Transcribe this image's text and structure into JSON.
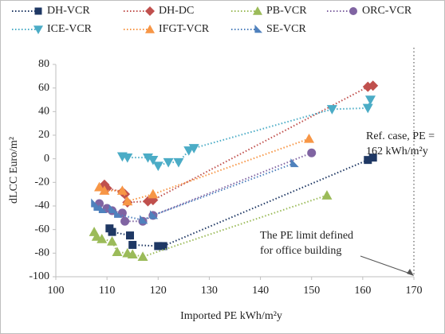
{
  "chart_data": {
    "type": "scatter",
    "xlabel": "Imported PE kWh/m²y",
    "ylabel": "dLCC Euro/m²",
    "xlim": [
      100,
      170
    ],
    "xticks": [
      100,
      110,
      120,
      130,
      140,
      150,
      160,
      170
    ],
    "ylim": [
      -100,
      80
    ],
    "yticks": [
      -100,
      -80,
      -60,
      -40,
      -20,
      0,
      20,
      40,
      60,
      80
    ],
    "grid": false,
    "legend": "top",
    "series": [
      {
        "name": "DH-VCR",
        "color": "#1f3864",
        "marker": "square",
        "x": [
          110.5,
          111,
          114.5,
          115,
          120,
          121,
          161,
          162
        ],
        "y": [
          -59,
          -62,
          -65,
          -73,
          -74,
          -74,
          -1,
          1
        ]
      },
      {
        "name": "DH-DC",
        "color": "#c0504d",
        "marker": "diamond",
        "x": [
          109.5,
          110,
          113,
          113.5,
          114,
          118,
          119,
          161,
          162
        ],
        "y": [
          -22,
          -25,
          -28,
          -30,
          -37,
          -36,
          -35,
          61,
          62
        ]
      },
      {
        "name": "PB-VCR",
        "color": "#9bbb59",
        "marker": "triangle-up",
        "x": [
          107.5,
          108,
          109,
          111,
          112,
          114,
          115,
          117,
          153
        ],
        "y": [
          -62,
          -66,
          -68,
          -70,
          -79,
          -80,
          -81,
          -83,
          -31
        ]
      },
      {
        "name": "ORC-VCR",
        "color": "#8064a2",
        "marker": "circle",
        "x": [
          108.5,
          110,
          111,
          113,
          113.5,
          117,
          119,
          150
        ],
        "y": [
          -38,
          -42,
          -44,
          -46,
          -53,
          -53,
          -48,
          5
        ]
      },
      {
        "name": "ICE-VCR",
        "color": "#4bacc6",
        "marker": "triangle-down",
        "x": [
          113,
          114,
          118,
          119,
          120,
          122,
          124,
          126,
          127,
          154,
          161,
          161.5
        ],
        "y": [
          2,
          1,
          1,
          -1,
          -6,
          -3,
          -3,
          7,
          9,
          42,
          43,
          50
        ]
      },
      {
        "name": "IFGT-VCR",
        "color": "#f79646",
        "marker": "triangle-up",
        "x": [
          108.5,
          109.5,
          113,
          114,
          119,
          149.5
        ],
        "y": [
          -24,
          -27,
          -27,
          -36,
          -30,
          17
        ]
      },
      {
        "name": "SE-VCR",
        "color": "#4f81bd",
        "marker": "triangle-right",
        "x": [
          107.5,
          108,
          109,
          111,
          112,
          117,
          119,
          146.5
        ],
        "y": [
          -38,
          -41,
          -43,
          -43,
          -47,
          -52,
          -48,
          -4
        ]
      }
    ],
    "reference_line": {
      "x": 170,
      "color": "#7f7f7f"
    },
    "annotations": [
      {
        "lines": [
          "Ref. case, PE =",
          "162 kWh/m²y"
        ]
      },
      {
        "lines": [
          "The PE limit defined",
          "for office building"
        ]
      }
    ]
  }
}
